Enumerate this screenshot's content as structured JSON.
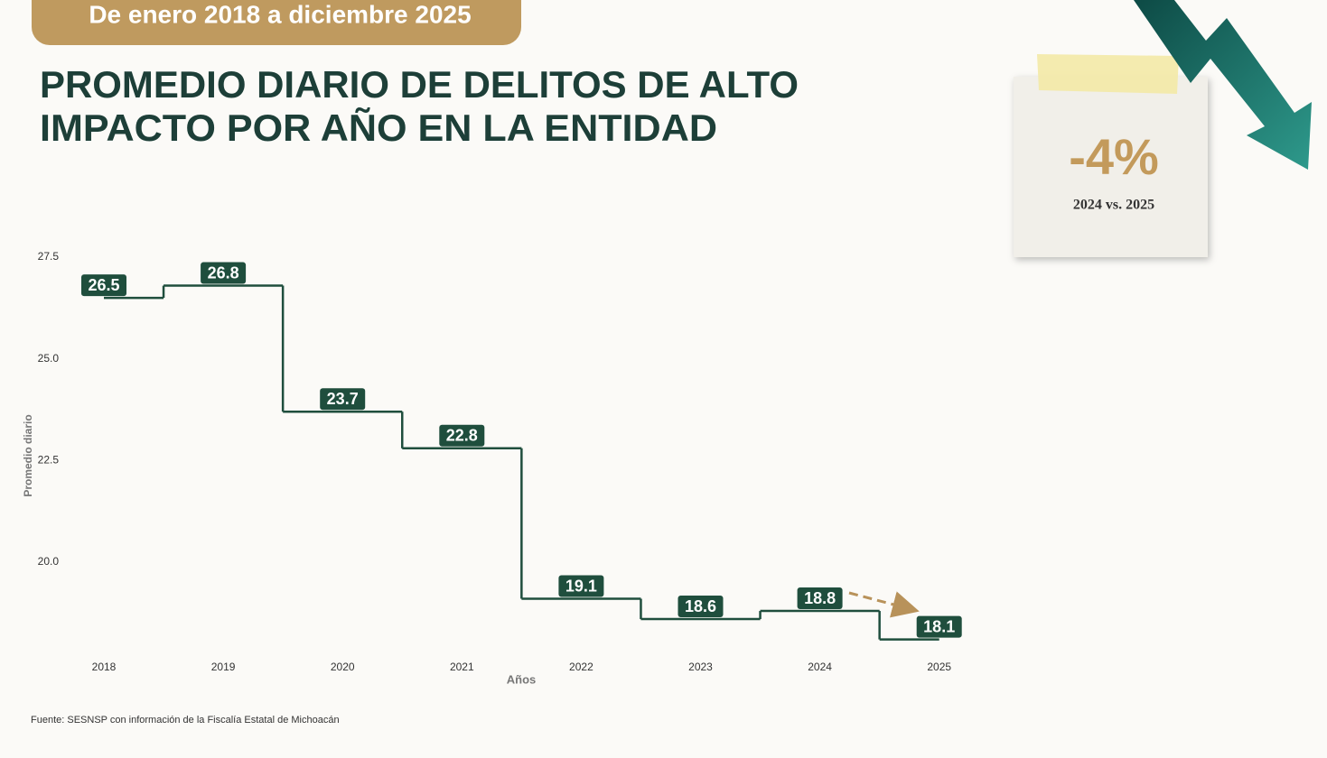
{
  "header": {
    "period": "De enero 2018 a diciembre 2025"
  },
  "title_lines": [
    "PROMEDIO DIARIO DE DELITOS DE ALTO",
    "IMPACTO POR AÑO EN LA ENTIDAD"
  ],
  "callout": {
    "value": "-4%",
    "label": "2024 vs. 2025"
  },
  "chart_data": {
    "type": "step",
    "x_label": "Años",
    "y_label": "Promedio diario",
    "categories": [
      "2018",
      "2019",
      "2020",
      "2021",
      "2022",
      "2023",
      "2024",
      "2025"
    ],
    "values": [
      26.5,
      26.8,
      23.7,
      22.8,
      19.1,
      18.6,
      18.8,
      18.1
    ],
    "color": "#1f4e3d",
    "label_color": "#ffffff",
    "ylim": [
      17.9,
      27.8
    ],
    "yticks": [
      {
        "value": 20,
        "label": "20.0"
      },
      22.5,
      {
        "value": 25,
        "label": "25.0"
      },
      27.5
    ],
    "grid": false
  },
  "source": "Fuente: SESNSP con información de la Fiscalía Estatal de Michoacán"
}
